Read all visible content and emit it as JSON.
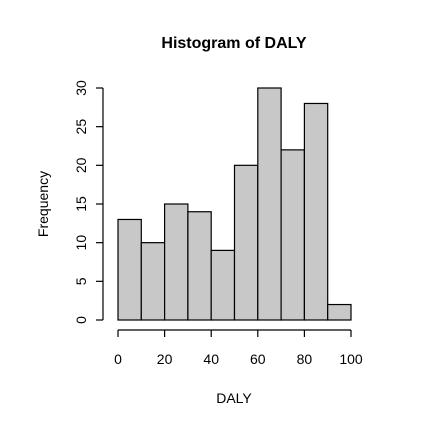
{
  "chart_data": {
    "type": "bar",
    "title": "Histogram of DALY",
    "xlabel": "DALY",
    "ylabel": "Frequency",
    "bins": [
      {
        "from": 0,
        "to": 10,
        "count": 13
      },
      {
        "from": 10,
        "to": 20,
        "count": 10
      },
      {
        "from": 20,
        "to": 30,
        "count": 15
      },
      {
        "from": 30,
        "to": 40,
        "count": 14
      },
      {
        "from": 40,
        "to": 50,
        "count": 9
      },
      {
        "from": 50,
        "to": 60,
        "count": 20
      },
      {
        "from": 60,
        "to": 70,
        "count": 30
      },
      {
        "from": 70,
        "to": 80,
        "count": 22
      },
      {
        "from": 80,
        "to": 90,
        "count": 28
      },
      {
        "from": 90,
        "to": 100,
        "count": 2
      }
    ],
    "xlim": [
      0,
      100
    ],
    "ylim": [
      0,
      30
    ],
    "x_ticks": [
      0,
      20,
      40,
      60,
      80,
      100
    ],
    "y_ticks": [
      0,
      5,
      10,
      15,
      20,
      25,
      30
    ],
    "bar_color": "#C8C8C8",
    "grid": false
  }
}
